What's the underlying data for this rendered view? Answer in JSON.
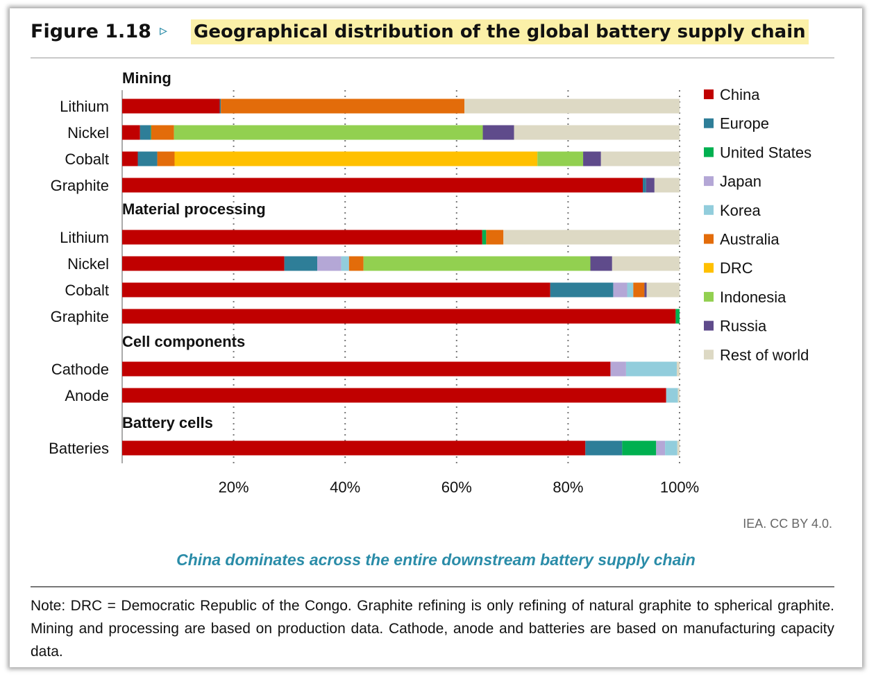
{
  "figure": {
    "label": "Figure 1.18",
    "arrow": "▹",
    "title": "Geographical distribution of the global battery supply chain",
    "source": "IEA. CC BY 4.0.",
    "headline": "China dominates across the entire downstream battery supply chain",
    "note": "Note: DRC = Democratic Republic of the Congo. Graphite refining is only refining of natural graphite to spherical graphite. Mining and processing are based on production data. Cathode, anode and batteries are based on manufacturing capacity data."
  },
  "chart_data": {
    "type": "bar",
    "orientation": "horizontal",
    "stacked": true,
    "xlim": [
      0,
      100
    ],
    "x_ticks": [
      "20%",
      "40%",
      "60%",
      "80%",
      "100%"
    ],
    "legend": [
      {
        "name": "China",
        "color": "#c00000"
      },
      {
        "name": "Europe",
        "color": "#2e7e98"
      },
      {
        "name": "United States",
        "color": "#00b050"
      },
      {
        "name": "Japan",
        "color": "#b4a7d6"
      },
      {
        "name": "Korea",
        "color": "#92cddc"
      },
      {
        "name": "Australia",
        "color": "#e36c0a"
      },
      {
        "name": "DRC",
        "color": "#ffc000"
      },
      {
        "name": "Indonesia",
        "color": "#92d050"
      },
      {
        "name": "Russia",
        "color": "#5f4b8b"
      },
      {
        "name": "Rest of world",
        "color": "#ddd9c4"
      }
    ],
    "legend_position": "right",
    "gridlines": "vertical dotted",
    "groups": [
      {
        "name": "Mining",
        "rows": [
          {
            "label": "Lithium",
            "values": [
              17.5,
              0.2,
              0,
              0,
              0,
              43.7,
              0,
              0,
              0,
              38.6
            ]
          },
          {
            "label": "Nickel",
            "values": [
              3.2,
              1.9,
              0.1,
              0,
              0,
              4.1,
              0,
              55.4,
              5.6,
              29.7
            ]
          },
          {
            "label": "Cobalt",
            "values": [
              2.8,
              3.5,
              0,
              0,
              0,
              3.1,
              65.1,
              8.2,
              3.2,
              14.1
            ]
          },
          {
            "label": "Graphite",
            "values": [
              93.4,
              0.6,
              0,
              0,
              0,
              0,
              0,
              0,
              1.5,
              4.5
            ]
          }
        ]
      },
      {
        "name": "Material processing",
        "rows": [
          {
            "label": "Lithium",
            "values": [
              64.6,
              0,
              0.7,
              0,
              0,
              3.1,
              0,
              0,
              0,
              31.6
            ]
          },
          {
            "label": "Nickel",
            "values": [
              29.1,
              5.9,
              0,
              4.3,
              1.4,
              2.6,
              0,
              40.7,
              3.9,
              12.1
            ]
          },
          {
            "label": "Cobalt",
            "values": [
              76.8,
              11.3,
              0,
              2.5,
              1.1,
              2.0,
              0,
              0,
              0.4,
              5.9
            ]
          },
          {
            "label": "Graphite",
            "values": [
              99.3,
              0,
              0.7,
              0,
              0,
              0,
              0,
              0,
              0,
              0
            ]
          }
        ]
      },
      {
        "name": "Cell components",
        "rows": [
          {
            "label": "Cathode",
            "values": [
              87.6,
              0,
              0,
              2.8,
              9.1,
              0,
              0,
              0,
              0,
              0.5
            ]
          },
          {
            "label": "Anode",
            "values": [
              97.6,
              0,
              0,
              0,
              2.1,
              0,
              0,
              0,
              0,
              0.3
            ]
          }
        ]
      },
      {
        "name": "Battery cells",
        "rows": [
          {
            "label": "Batteries",
            "values": [
              83.1,
              6.6,
              6.1,
              1.6,
              2.2,
              0,
              0,
              0,
              0,
              0.4
            ]
          }
        ]
      }
    ]
  }
}
